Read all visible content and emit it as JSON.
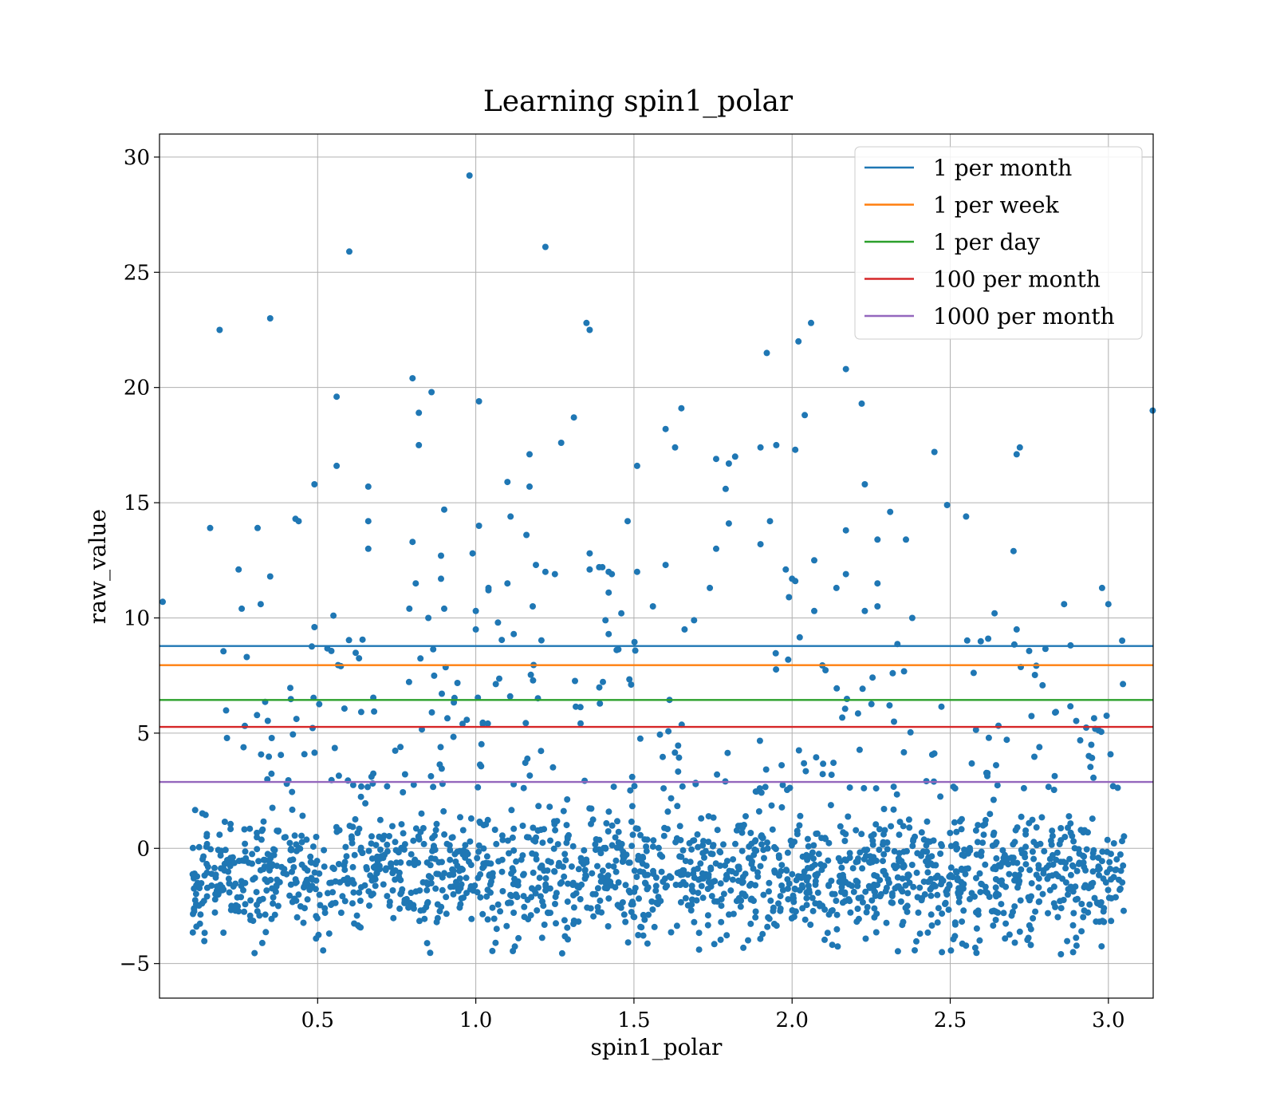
{
  "chart_data": {
    "type": "scatter",
    "title": "Learning spin1_polar",
    "xlabel": "spin1_polar",
    "ylabel": "raw_value",
    "xlim": [
      0.0,
      3.1416
    ],
    "ylim": [
      -6.5,
      31.0
    ],
    "xticks": [
      0.5,
      1.0,
      1.5,
      2.0,
      2.5,
      3.0
    ],
    "xtick_labels": [
      "0.5",
      "1.0",
      "1.5",
      "2.0",
      "2.5",
      "3.0"
    ],
    "yticks": [
      -5,
      0,
      5,
      10,
      15,
      20,
      25,
      30
    ],
    "ytick_labels": [
      "−5",
      "0",
      "5",
      "10",
      "15",
      "20",
      "25",
      "30"
    ],
    "grid": true,
    "legend_position": "top-right",
    "scatter_color": "#1f77b4",
    "points_outliers": [
      [
        0.98,
        29.2
      ],
      [
        1.22,
        26.1
      ],
      [
        0.6,
        25.9
      ],
      [
        0.35,
        23.0
      ],
      [
        0.19,
        22.5
      ],
      [
        1.35,
        22.8
      ],
      [
        1.36,
        22.5
      ],
      [
        2.06,
        22.8
      ],
      [
        2.02,
        22.0
      ],
      [
        1.92,
        21.5
      ],
      [
        2.17,
        20.8
      ],
      [
        0.8,
        20.4
      ],
      [
        0.86,
        19.8
      ],
      [
        0.56,
        19.6
      ],
      [
        1.01,
        19.4
      ],
      [
        2.22,
        19.3
      ],
      [
        1.65,
        19.1
      ],
      [
        3.14,
        19.0
      ],
      [
        0.82,
        18.9
      ],
      [
        2.04,
        18.8
      ],
      [
        1.31,
        18.7
      ],
      [
        1.6,
        18.2
      ],
      [
        0.82,
        17.5
      ],
      [
        1.27,
        17.6
      ],
      [
        1.63,
        17.4
      ],
      [
        1.9,
        17.4
      ],
      [
        1.95,
        17.5
      ],
      [
        2.01,
        17.3
      ],
      [
        2.72,
        17.4
      ],
      [
        2.45,
        17.2
      ],
      [
        1.17,
        17.1
      ],
      [
        2.71,
        17.1
      ],
      [
        1.76,
        16.9
      ],
      [
        1.8,
        16.7
      ],
      [
        1.82,
        17.0
      ],
      [
        0.56,
        16.6
      ],
      [
        1.51,
        16.6
      ],
      [
        0.49,
        15.8
      ],
      [
        0.66,
        15.7
      ],
      [
        1.17,
        15.7
      ],
      [
        1.79,
        15.6
      ],
      [
        2.23,
        15.8
      ],
      [
        1.1,
        15.9
      ],
      [
        2.49,
        14.9
      ],
      [
        0.9,
        14.7
      ],
      [
        2.31,
        14.6
      ],
      [
        2.55,
        14.4
      ],
      [
        0.43,
        14.3
      ],
      [
        0.44,
        14.2
      ],
      [
        1.11,
        14.4
      ],
      [
        1.48,
        14.2
      ],
      [
        1.93,
        14.2
      ],
      [
        0.66,
        14.2
      ],
      [
        1.8,
        14.1
      ],
      [
        1.01,
        14.0
      ],
      [
        0.16,
        13.9
      ],
      [
        0.31,
        13.9
      ],
      [
        2.17,
        13.8
      ],
      [
        1.16,
        13.6
      ],
      [
        2.27,
        13.4
      ],
      [
        2.36,
        13.4
      ],
      [
        0.8,
        13.3
      ],
      [
        1.76,
        13.0
      ],
      [
        1.9,
        13.2
      ],
      [
        0.66,
        13.0
      ],
      [
        0.99,
        12.8
      ],
      [
        1.36,
        12.8
      ],
      [
        0.89,
        12.7
      ],
      [
        2.7,
        12.9
      ],
      [
        2.07,
        12.5
      ],
      [
        1.19,
        12.3
      ],
      [
        1.6,
        12.3
      ],
      [
        1.36,
        12.1
      ],
      [
        1.39,
        12.2
      ],
      [
        1.4,
        12.2
      ],
      [
        1.42,
        12.0
      ],
      [
        0.25,
        12.1
      ],
      [
        1.22,
        12.0
      ],
      [
        1.25,
        11.9
      ],
      [
        1.51,
        12.0
      ],
      [
        1.98,
        12.1
      ],
      [
        2.0,
        11.7
      ],
      [
        2.01,
        11.6
      ],
      [
        2.17,
        11.9
      ],
      [
        1.43,
        11.9
      ],
      [
        0.35,
        11.8
      ],
      [
        0.89,
        11.7
      ],
      [
        2.27,
        11.5
      ],
      [
        0.81,
        11.5
      ],
      [
        1.1,
        11.5
      ],
      [
        1.04,
        11.3
      ],
      [
        1.42,
        11.1
      ],
      [
        1.74,
        11.3
      ],
      [
        2.98,
        11.3
      ],
      [
        2.14,
        11.3
      ],
      [
        1.04,
        11.2
      ],
      [
        1.99,
        10.9
      ],
      [
        0.01,
        10.7
      ],
      [
        0.32,
        10.6
      ],
      [
        2.27,
        10.5
      ],
      [
        2.86,
        10.6
      ],
      [
        3.0,
        10.6
      ],
      [
        1.0,
        10.3
      ],
      [
        1.18,
        10.5
      ],
      [
        0.26,
        10.4
      ],
      [
        0.9,
        10.4
      ],
      [
        0.79,
        10.4
      ],
      [
        2.07,
        10.3
      ],
      [
        2.23,
        10.3
      ],
      [
        2.38,
        10.0
      ],
      [
        2.64,
        10.2
      ],
      [
        0.85,
        10.0
      ],
      [
        1.46,
        10.2
      ],
      [
        1.56,
        10.5
      ],
      [
        0.55,
        10.1
      ],
      [
        1.41,
        9.9
      ],
      [
        1.69,
        9.9
      ],
      [
        0.49,
        9.6
      ],
      [
        2.62,
        9.1
      ],
      [
        2.71,
        9.5
      ],
      [
        1.66,
        9.5
      ],
      [
        1.0,
        9.5
      ],
      [
        1.07,
        9.8
      ],
      [
        1.12,
        9.3
      ],
      [
        1.42,
        9.3
      ]
    ],
    "cluster_bands": [
      {
        "x": [
          0.1,
          3.05
        ],
        "y": [
          -4.6,
          2.6
        ],
        "count": 1700
      },
      {
        "x": [
          0.2,
          3.05
        ],
        "y": [
          2.6,
          9.2
        ],
        "count": 230
      }
    ],
    "hlines": [
      {
        "label": "1 per month",
        "y": 8.78,
        "color": "#1f77b4"
      },
      {
        "label": "1 per week",
        "y": 7.95,
        "color": "#ff7f0e"
      },
      {
        "label": "1 per day",
        "y": 6.44,
        "color": "#2ca02c"
      },
      {
        "label": "100 per month",
        "y": 5.27,
        "color": "#d62728"
      },
      {
        "label": "1000 per month",
        "y": 2.88,
        "color": "#9467bd"
      }
    ]
  }
}
